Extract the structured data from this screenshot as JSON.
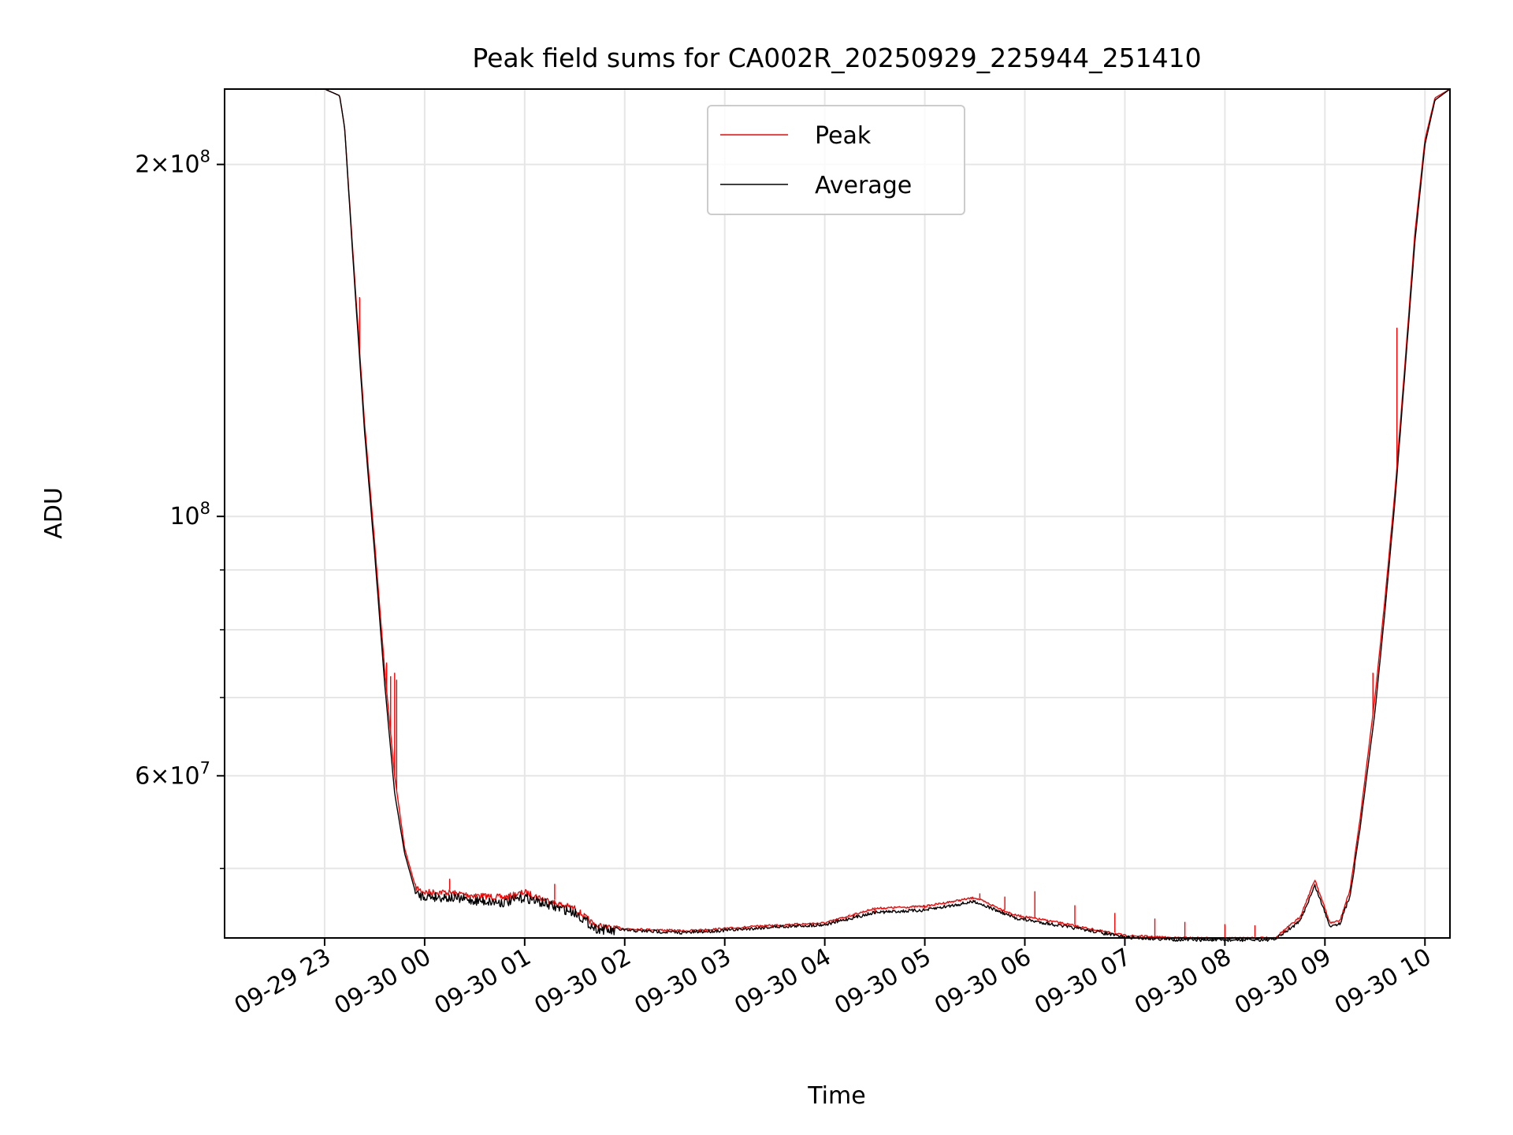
{
  "chart_data": {
    "type": "line",
    "title": "Peak field sums for CA002R_20250929_225944_251410",
    "xlabel": "Time",
    "ylabel": "ADU",
    "yscale": "log",
    "ylim": [
      43600000,
      232000000
    ],
    "xlim": [
      -1,
      11.25
    ],
    "x_unit": "hours since 09-29 23:00",
    "x_ticks": [
      {
        "value": 0,
        "label": "09-29 23"
      },
      {
        "value": 1,
        "label": "09-30 00"
      },
      {
        "value": 2,
        "label": "09-30 01"
      },
      {
        "value": 3,
        "label": "09-30 02"
      },
      {
        "value": 4,
        "label": "09-30 03"
      },
      {
        "value": 5,
        "label": "09-30 04"
      },
      {
        "value": 6,
        "label": "09-30 05"
      },
      {
        "value": 7,
        "label": "09-30 06"
      },
      {
        "value": 8,
        "label": "09-30 07"
      },
      {
        "value": 9,
        "label": "09-30 08"
      },
      {
        "value": 10,
        "label": "09-30 09"
      },
      {
        "value": 11,
        "label": "09-30 10"
      }
    ],
    "y_ticks": [
      {
        "value": 200000000,
        "mantissa": "2",
        "exponent": "8"
      },
      {
        "value": 100000000,
        "mantissa": "",
        "exponent": "8"
      },
      {
        "value": 60000000,
        "mantissa": "6",
        "exponent": "7"
      }
    ],
    "y_minor_ticks": [
      50000000,
      70000000,
      80000000,
      90000000
    ],
    "grid": true,
    "legend_position": "top-center",
    "series": [
      {
        "name": "Peak",
        "color": "#ff0000",
        "x": [
          0.0,
          0.15,
          0.2,
          0.3,
          0.4,
          0.5,
          0.6,
          0.7,
          0.8,
          0.9,
          1.0,
          1.2,
          1.5,
          1.8,
          2.0,
          2.3,
          2.5,
          2.7,
          3.0,
          3.3,
          3.6,
          4.0,
          4.5,
          5.0,
          5.5,
          6.0,
          6.5,
          6.9,
          7.3,
          7.7,
          8.0,
          8.5,
          9.0,
          9.5,
          9.75,
          9.9,
          10.05,
          10.15,
          10.25,
          10.35,
          10.5,
          10.6,
          10.7,
          10.8,
          10.9,
          11.0,
          11.1,
          11.25
        ],
        "y": [
          232000000,
          229000000,
          215000000,
          160000000,
          120000000,
          95000000,
          74000000,
          60000000,
          52000000,
          48500000,
          48000000,
          48000000,
          47700000,
          47500000,
          48000000,
          47000000,
          46500000,
          45000000,
          44500000,
          44400000,
          44300000,
          44500000,
          44800000,
          45000000,
          46300000,
          46500000,
          47300000,
          45700000,
          45100000,
          44400000,
          43900000,
          43700000,
          43650000,
          43700000,
          45500000,
          49000000,
          45000000,
          45200000,
          48000000,
          55000000,
          70000000,
          85000000,
          105000000,
          135000000,
          175000000,
          210000000,
          228000000,
          232000000
        ],
        "spikes": [
          {
            "x": 0.35,
            "y": 154000000
          },
          {
            "x": 0.52,
            "y": 89000000
          },
          {
            "x": 0.62,
            "y": 75000000
          },
          {
            "x": 0.66,
            "y": 73000000
          },
          {
            "x": 0.7,
            "y": 73500000
          },
          {
            "x": 0.72,
            "y": 72500000
          },
          {
            "x": 1.25,
            "y": 49000000
          },
          {
            "x": 2.3,
            "y": 48500000
          },
          {
            "x": 5.25,
            "y": 45700000
          },
          {
            "x": 5.5,
            "y": 45800000
          },
          {
            "x": 6.0,
            "y": 46200000
          },
          {
            "x": 6.55,
            "y": 47600000
          },
          {
            "x": 6.8,
            "y": 47300000
          },
          {
            "x": 7.1,
            "y": 47800000
          },
          {
            "x": 7.5,
            "y": 46500000
          },
          {
            "x": 7.9,
            "y": 45800000
          },
          {
            "x": 8.3,
            "y": 45300000
          },
          {
            "x": 8.6,
            "y": 45000000
          },
          {
            "x": 9.0,
            "y": 44800000
          },
          {
            "x": 9.3,
            "y": 44700000
          },
          {
            "x": 10.48,
            "y": 73500000
          },
          {
            "x": 10.72,
            "y": 145000000
          }
        ]
      },
      {
        "name": "Average",
        "color": "#000000",
        "x": [
          0.0,
          0.15,
          0.2,
          0.3,
          0.4,
          0.5,
          0.6,
          0.7,
          0.8,
          0.9,
          1.0,
          1.2,
          1.5,
          1.8,
          2.0,
          2.3,
          2.5,
          2.7,
          3.0,
          3.3,
          3.6,
          4.0,
          4.5,
          5.0,
          5.5,
          6.0,
          6.5,
          6.9,
          7.3,
          7.7,
          8.0,
          8.5,
          9.0,
          9.5,
          9.75,
          9.9,
          10.05,
          10.15,
          10.25,
          10.35,
          10.5,
          10.6,
          10.7,
          10.8,
          10.9,
          11.0,
          11.1,
          11.25
        ],
        "y": [
          232000000,
          229000000,
          215000000,
          158000000,
          118000000,
          93000000,
          72000000,
          58000000,
          51500000,
          48000000,
          47800000,
          47700000,
          47400000,
          47200000,
          47700000,
          46800000,
          46300000,
          44900000,
          44400000,
          44300000,
          44200000,
          44400000,
          44700000,
          44900000,
          46000000,
          46200000,
          47000000,
          45500000,
          44900000,
          44300000,
          43800000,
          43600000,
          43550000,
          43600000,
          45200000,
          48500000,
          44800000,
          45000000,
          47500000,
          54000000,
          68000000,
          83000000,
          103000000,
          133000000,
          172000000,
          208000000,
          227000000,
          232000000
        ]
      }
    ]
  }
}
